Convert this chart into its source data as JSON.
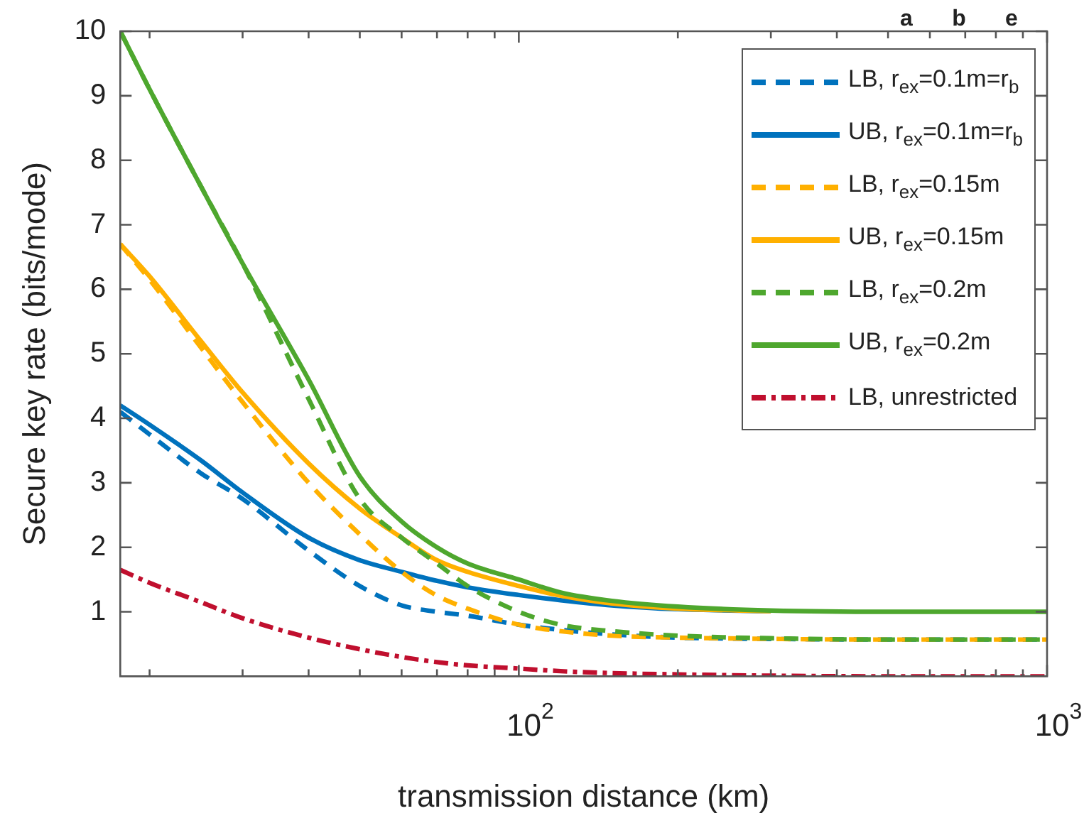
{
  "chart_data": {
    "type": "line",
    "xlabel": "transmission distance (km)",
    "ylabel": "Secure key rate (bits/mode)",
    "x": [
      17.6,
      20,
      25,
      30,
      40,
      50,
      60,
      70,
      80,
      100,
      120,
      150,
      200,
      300,
      500,
      1000
    ],
    "series": [
      {
        "name": "LB, r$_{ex}$=0.1m=r$_{b}$",
        "color": "#0072bd",
        "line_style": "dashed",
        "values": [
          4.1,
          3.75,
          3.15,
          2.75,
          1.95,
          1.4,
          1.1,
          1.0,
          0.94,
          0.8,
          0.72,
          0.65,
          0.6,
          0.58,
          0.57,
          0.57
        ]
      },
      {
        "name": "UB, r$_{ex}$=0.1m=r$_{b}$",
        "color": "#0072bd",
        "line_style": "solid",
        "values": [
          4.2,
          3.9,
          3.35,
          2.85,
          2.15,
          1.8,
          1.62,
          1.48,
          1.38,
          1.26,
          1.18,
          1.1,
          1.04,
          1.01,
          null,
          null
        ]
      },
      {
        "name": "LB, r$_{ex}$=0.15m",
        "color": "#ffb000",
        "line_style": "dashed",
        "values": [
          6.7,
          6.15,
          5.1,
          4.25,
          3.0,
          2.2,
          1.62,
          1.25,
          1.05,
          0.8,
          0.7,
          0.63,
          0.6,
          0.58,
          0.57,
          0.57
        ]
      },
      {
        "name": "UB, r$_{ex}$=0.15m",
        "color": "#ffb000",
        "line_style": "solid",
        "values": [
          6.7,
          6.2,
          5.2,
          4.4,
          3.3,
          2.6,
          2.15,
          1.8,
          1.62,
          1.4,
          1.25,
          1.13,
          1.05,
          1.01,
          null,
          null
        ]
      },
      {
        "name": "LB, r$_{ex}$=0.2m",
        "color": "#4ea72e",
        "line_style": "dashed",
        "values": [
          10,
          9.1,
          7.6,
          6.4,
          4.3,
          2.75,
          2.15,
          1.75,
          1.4,
          1.0,
          0.8,
          0.7,
          0.63,
          0.59,
          0.57,
          0.57
        ]
      },
      {
        "name": "UB, r$_{ex}$=0.2m",
        "color": "#4ea72e",
        "line_style": "solid",
        "values": [
          10,
          9.1,
          7.6,
          6.4,
          4.6,
          3.1,
          2.4,
          2.0,
          1.75,
          1.5,
          1.3,
          1.17,
          1.08,
          1.02,
          1.0,
          1.0
        ]
      },
      {
        "name": "LB, unrestricted",
        "color": "#c00f2e",
        "line_style": "dashdot",
        "values": [
          1.65,
          1.45,
          1.15,
          0.9,
          0.6,
          0.42,
          0.3,
          0.22,
          0.17,
          0.12,
          0.08,
          0.05,
          0.03,
          0.01,
          0,
          0
        ]
      }
    ],
    "log": "x",
    "xlim": [
      17.6,
      1000
    ],
    "xticks": [
      {
        "value": 20,
        "label": null
      },
      {
        "value": 30,
        "label": null
      },
      {
        "value": 40,
        "label": null
      },
      {
        "value": 50,
        "label": null
      },
      {
        "value": 60,
        "label": null
      },
      {
        "value": 70,
        "label": null
      },
      {
        "value": 80,
        "label": null
      },
      {
        "value": 90,
        "label": null
      },
      {
        "value": 100,
        "label": "10$^{2}$"
      },
      {
        "value": 200,
        "label": null
      },
      {
        "value": 300,
        "label": null
      },
      {
        "value": 400,
        "label": null
      },
      {
        "value": 500,
        "label": null
      },
      {
        "value": 600,
        "label": null
      },
      {
        "value": 700,
        "label": null
      },
      {
        "value": 800,
        "label": null
      },
      {
        "value": 900,
        "label": null
      },
      {
        "value": 1000,
        "label": "10$^{3}$"
      }
    ],
    "ylim": [
      0,
      10
    ],
    "yticks": [
      1,
      2,
      3,
      4,
      5,
      6,
      7,
      8,
      9,
      10
    ],
    "grid": false,
    "legend": "top right",
    "marker": "none",
    "annotations": [
      "a",
      "b",
      "e"
    ]
  }
}
